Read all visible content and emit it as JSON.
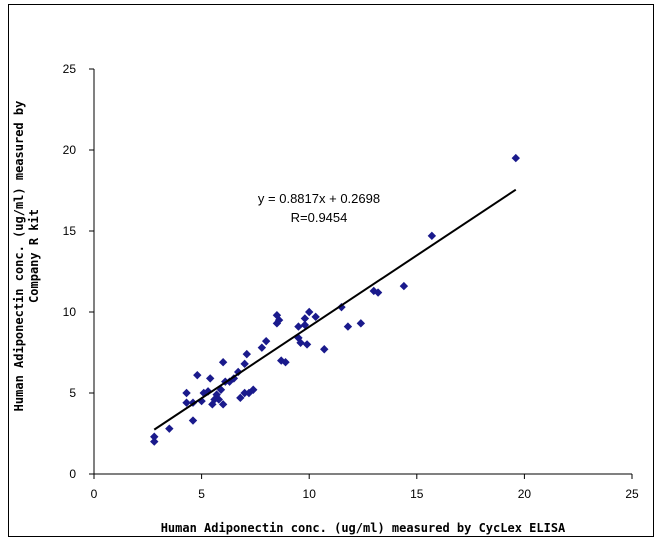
{
  "chart_data": {
    "type": "scatter",
    "title": "",
    "xlabel": "Human Adiponectin conc. (ug/ml) measured by CycLex ELISA",
    "ylabel_lines": [
      "Human Adiponectin conc. (ug/ml) measured by",
      "Company R kit"
    ],
    "xlim": [
      0,
      25
    ],
    "ylim": [
      0,
      25
    ],
    "xticks": [
      0,
      5,
      10,
      15,
      20,
      25
    ],
    "yticks": [
      0,
      5,
      10,
      15,
      20,
      25
    ],
    "grid": false,
    "marker_color": "#1a1a8c",
    "trendline": {
      "slope": 0.8817,
      "intercept": 0.2698,
      "x_range": [
        2.8,
        19.6
      ],
      "equation": "y = 0.8817x + 0.2698",
      "r_label": "R=0.9454"
    },
    "points": [
      [
        2.8,
        2.0
      ],
      [
        2.8,
        2.3
      ],
      [
        3.5,
        2.8
      ],
      [
        4.3,
        4.4
      ],
      [
        4.3,
        5.0
      ],
      [
        4.6,
        4.4
      ],
      [
        4.6,
        3.3
      ],
      [
        4.8,
        6.1
      ],
      [
        5.0,
        4.5
      ],
      [
        5.1,
        5.0
      ],
      [
        5.3,
        5.1
      ],
      [
        5.4,
        5.9
      ],
      [
        5.5,
        4.3
      ],
      [
        5.6,
        4.6
      ],
      [
        5.7,
        4.9
      ],
      [
        5.8,
        4.6
      ],
      [
        5.9,
        5.2
      ],
      [
        6.0,
        4.3
      ],
      [
        6.0,
        6.9
      ],
      [
        6.1,
        5.7
      ],
      [
        6.3,
        5.7
      ],
      [
        6.5,
        5.9
      ],
      [
        6.7,
        6.3
      ],
      [
        6.8,
        4.7
      ],
      [
        7.0,
        5.0
      ],
      [
        7.0,
        6.8
      ],
      [
        7.1,
        7.4
      ],
      [
        7.2,
        5.0
      ],
      [
        7.4,
        5.2
      ],
      [
        7.8,
        7.8
      ],
      [
        8.0,
        8.2
      ],
      [
        8.5,
        9.3
      ],
      [
        8.5,
        9.8
      ],
      [
        8.6,
        9.5
      ],
      [
        8.7,
        7.0
      ],
      [
        8.9,
        6.9
      ],
      [
        9.5,
        8.4
      ],
      [
        9.5,
        9.1
      ],
      [
        9.6,
        8.1
      ],
      [
        9.8,
        9.6
      ],
      [
        9.8,
        9.2
      ],
      [
        9.9,
        8.0
      ],
      [
        10.0,
        10.0
      ],
      [
        10.3,
        9.7
      ],
      [
        10.7,
        7.7
      ],
      [
        11.5,
        10.3
      ],
      [
        11.8,
        9.1
      ],
      [
        12.4,
        9.3
      ],
      [
        13.0,
        11.3
      ],
      [
        13.2,
        11.2
      ],
      [
        14.4,
        11.6
      ],
      [
        15.7,
        14.7
      ],
      [
        19.6,
        19.5
      ]
    ]
  }
}
